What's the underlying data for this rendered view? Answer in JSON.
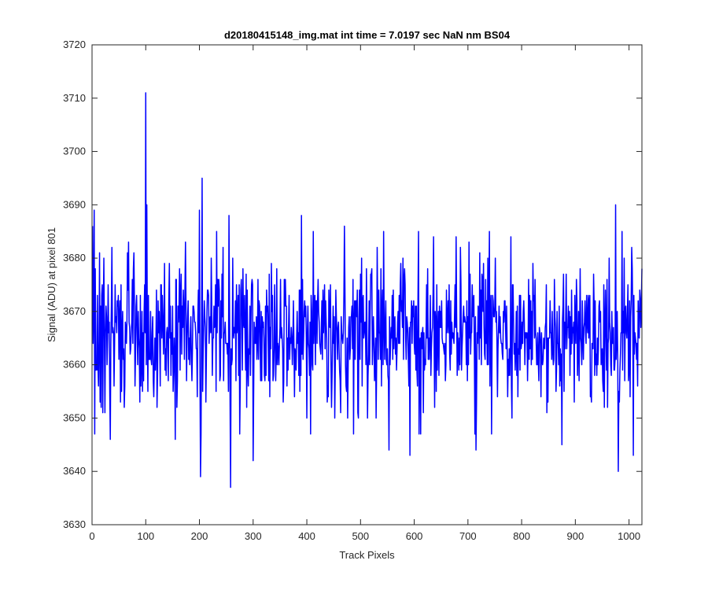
{
  "chart_data": {
    "type": "line",
    "title": "d20180415148_img.mat int time = 7.0197 sec  NaN nm BS04",
    "xlabel": "Track Pixels",
    "ylabel": "Signal (ADU) at pixel 801",
    "xlim": [
      0,
      1024
    ],
    "ylim": [
      3630,
      3720
    ],
    "xticks": [
      0,
      100,
      200,
      300,
      400,
      500,
      600,
      700,
      800,
      900,
      1000
    ],
    "yticks": [
      3630,
      3640,
      3650,
      3660,
      3670,
      3680,
      3690,
      3700,
      3710,
      3720
    ],
    "grid": false,
    "box": true,
    "series": [
      {
        "color": "#0000ff",
        "mean": 3666,
        "std": 7,
        "n_points": 1024,
        "x_start": 1,
        "x_end": 1024,
        "features": [
          {
            "x": 1,
            "y": 3686
          },
          {
            "x": 4,
            "y": 3689
          },
          {
            "x": 12,
            "y": 3656
          },
          {
            "x": 15,
            "y": 3653
          },
          {
            "x": 20,
            "y": 3651
          },
          {
            "x": 34,
            "y": 3646
          },
          {
            "x": 100,
            "y": 3711
          },
          {
            "x": 102,
            "y": 3690
          },
          {
            "x": 155,
            "y": 3646
          },
          {
            "x": 202,
            "y": 3639
          },
          {
            "x": 205,
            "y": 3695
          },
          {
            "x": 200,
            "y": 3689
          },
          {
            "x": 255,
            "y": 3688
          },
          {
            "x": 258,
            "y": 3637
          },
          {
            "x": 275,
            "y": 3647
          },
          {
            "x": 300,
            "y": 3642
          },
          {
            "x": 390,
            "y": 3688
          },
          {
            "x": 407,
            "y": 3647
          },
          {
            "x": 470,
            "y": 3686
          },
          {
            "x": 553,
            "y": 3644
          },
          {
            "x": 592,
            "y": 3643
          },
          {
            "x": 715,
            "y": 3644
          },
          {
            "x": 702,
            "y": 3683
          },
          {
            "x": 875,
            "y": 3645
          },
          {
            "x": 975,
            "y": 3690
          },
          {
            "x": 980,
            "y": 3640
          },
          {
            "x": 1008,
            "y": 3643
          },
          {
            "x": 1020,
            "y": 3674
          }
        ]
      }
    ]
  }
}
